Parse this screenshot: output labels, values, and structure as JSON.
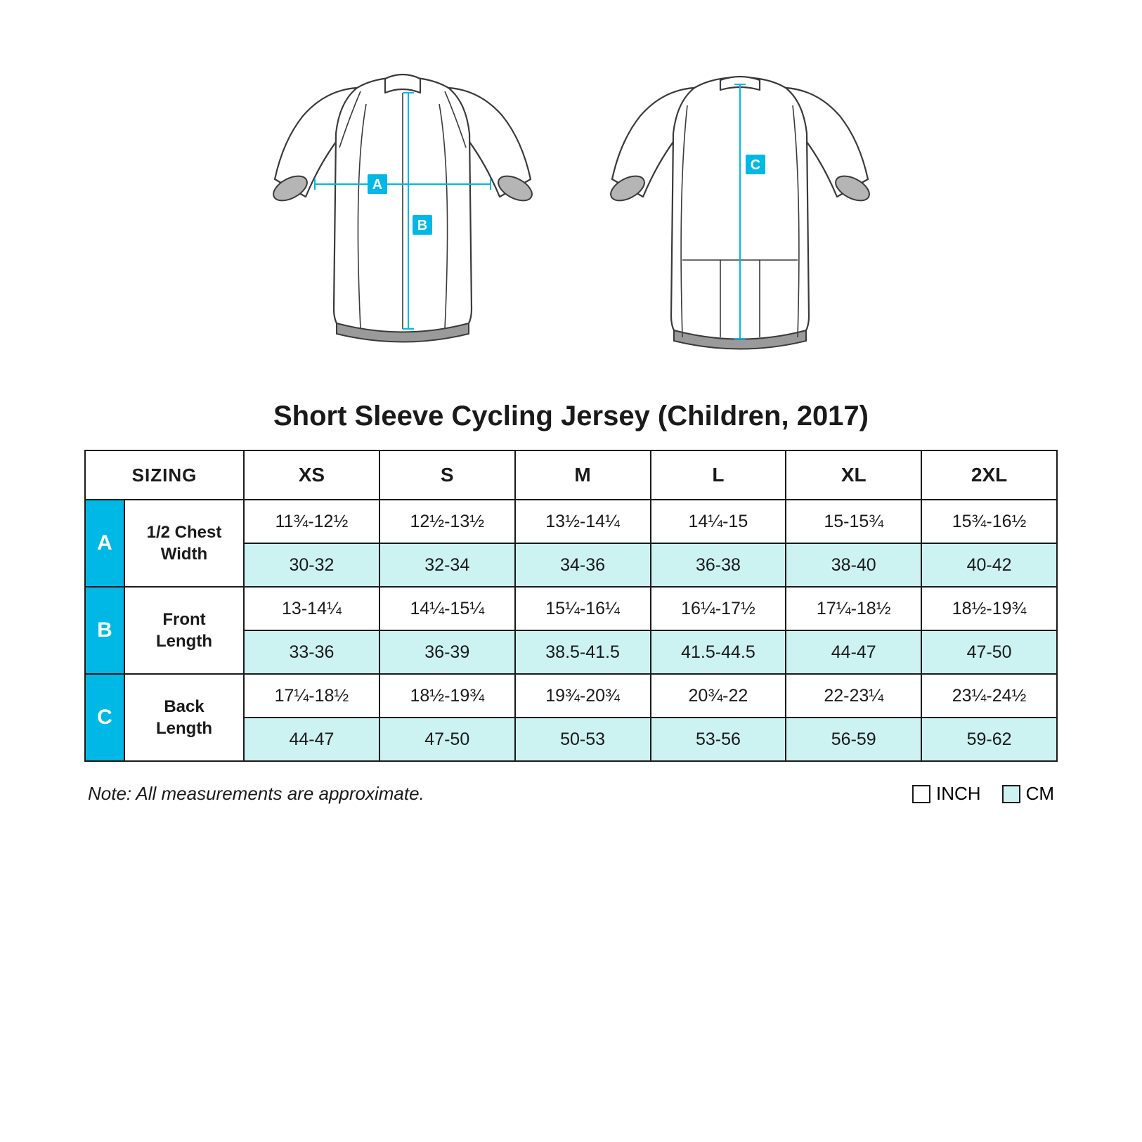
{
  "colors": {
    "accent": "#00b8e6",
    "cm_bg": "#ccf2f2",
    "border": "#1a1a1a",
    "text": "#1a1a1a",
    "bg": "#ffffff"
  },
  "diagram": {
    "markers_front": [
      "A",
      "B"
    ],
    "markers_back": [
      "C"
    ]
  },
  "title": "Short Sleeve Cycling Jersey (Children, 2017)",
  "table": {
    "sizing_label": "SIZING",
    "sizes": [
      "XS",
      "S",
      "M",
      "L",
      "XL",
      "2XL"
    ],
    "rows": [
      {
        "letter": "A",
        "name": "1/2 Chest Width",
        "inch": [
          "11¾-12½",
          "12½-13½",
          "13½-14¼",
          "14¼-15",
          "15-15¾",
          "15¾-16½"
        ],
        "cm": [
          "30-32",
          "32-34",
          "34-36",
          "36-38",
          "38-40",
          "40-42"
        ]
      },
      {
        "letter": "B",
        "name": "Front Length",
        "inch": [
          "13-14¼",
          "14¼-15¼",
          "15¼-16¼",
          "16¼-17½",
          "17¼-18½",
          "18½-19¾"
        ],
        "cm": [
          "33-36",
          "36-39",
          "38.5-41.5",
          "41.5-44.5",
          "44-47",
          "47-50"
        ]
      },
      {
        "letter": "C",
        "name": "Back Length",
        "inch": [
          "17¼-18½",
          "18½-19¾",
          "19¾-20¾",
          "20¾-22",
          "22-23¼",
          "23¼-24½"
        ],
        "cm": [
          "44-47",
          "47-50",
          "50-53",
          "53-56",
          "56-59",
          "59-62"
        ]
      }
    ]
  },
  "footer": {
    "note": "Note: All measurements are approximate.",
    "legend_inch": "INCH",
    "legend_cm": "CM"
  }
}
